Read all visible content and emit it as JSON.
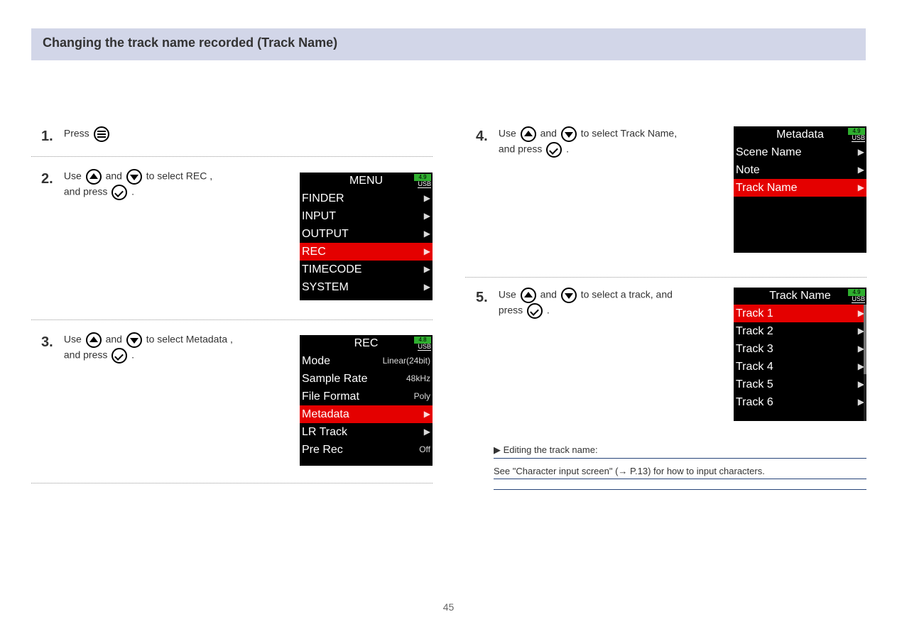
{
  "page_number": "45",
  "section_title": "Changing the track name recorded (Track Name)",
  "steps": {
    "one": {
      "num": "1.",
      "a": "Press ",
      "b": ""
    },
    "two": {
      "num": "2.",
      "a": "Use ",
      "b": " and ",
      "c": " to select REC ,",
      "d": "and press ",
      "e": "."
    },
    "three": {
      "num": "3.",
      "a": "Use ",
      "b": " and ",
      "c": " to select Metadata ,",
      "d": "and press ",
      "e": "."
    },
    "four": {
      "num": "4.",
      "a": "Use ",
      "b": " and ",
      "c": " to select Track Name,",
      "d": "and press ",
      "e": "."
    },
    "five": {
      "num": "5.",
      "a": "Use ",
      "b": " and ",
      "c": " to select a track, and",
      "d": "press ",
      "e": "."
    }
  },
  "hints": {
    "h1": "▶ Editing the track name:",
    "h2": "See \"Character input screen\" (→ P.13) for how to input characters.",
    "h3": ""
  },
  "lcd_common": {
    "battery_label": "4.9",
    "usb_label": "USB"
  },
  "menu_lcd": {
    "title": "MENU",
    "items": [
      {
        "label": "FINDER",
        "sel": false
      },
      {
        "label": "INPUT",
        "sel": false
      },
      {
        "label": "OUTPUT",
        "sel": false
      },
      {
        "label": "REC",
        "sel": true
      },
      {
        "label": "TIMECODE",
        "sel": false
      },
      {
        "label": "SYSTEM",
        "sel": false
      }
    ]
  },
  "rec_lcd": {
    "title": "REC",
    "battery_label": "4.8",
    "items": [
      {
        "label": "Mode",
        "value": "Linear(24bit)",
        "sel": false
      },
      {
        "label": "Sample Rate",
        "value": "48kHz",
        "sel": false
      },
      {
        "label": "File Format",
        "value": "Poly",
        "sel": false
      },
      {
        "label": "Metadata",
        "value": "▶",
        "sel": true
      },
      {
        "label": "LR Track",
        "value": "▶",
        "sel": false
      },
      {
        "label": "Pre Rec",
        "value": "Off",
        "sel": false
      }
    ]
  },
  "metadata_lcd": {
    "title": "Metadata",
    "items": [
      {
        "label": "Scene Name",
        "sel": false
      },
      {
        "label": "Note",
        "sel": false
      },
      {
        "label": "Track Name",
        "sel": true
      }
    ]
  },
  "trackname_lcd": {
    "title": "Track Name",
    "items": [
      {
        "label": "Track 1",
        "sel": true
      },
      {
        "label": "Track 2",
        "sel": false
      },
      {
        "label": "Track 3",
        "sel": false
      },
      {
        "label": "Track 4",
        "sel": false
      },
      {
        "label": "Track 5",
        "sel": false
      },
      {
        "label": "Track 6",
        "sel": false
      }
    ]
  }
}
